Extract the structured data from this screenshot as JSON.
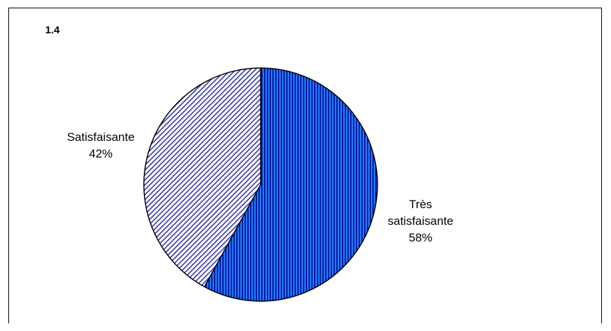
{
  "chart_data": {
    "type": "pie",
    "title": "1.4",
    "slices": [
      {
        "label": "Très satisfaisante",
        "label_lines": [
          "Très",
          "satisfaisante"
        ],
        "value": 58,
        "value_label": "58%",
        "color": "#0066ff",
        "pattern": "vertical-stripes"
      },
      {
        "label": "Satisfaisante",
        "label_lines": [
          "Satisfaisante"
        ],
        "value": 42,
        "value_label": "42%",
        "color": "#ccccff",
        "pattern": "diagonal-hatch"
      }
    ]
  }
}
